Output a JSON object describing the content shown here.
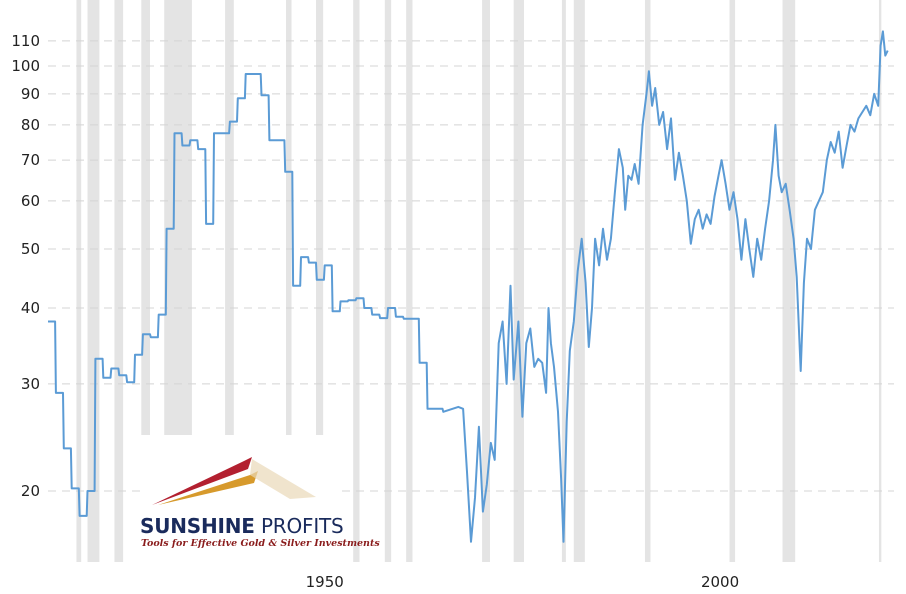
{
  "chart_data": {
    "type": "line",
    "title": "",
    "xlabel": "",
    "ylabel": "",
    "x_ticks": [
      1950,
      2000
    ],
    "y_ticks": [
      20,
      30,
      40,
      50,
      60,
      70,
      80,
      90,
      100,
      110
    ],
    "xlim": [
      1915,
      2022
    ],
    "ylim": [
      16.5,
      114
    ],
    "y_scale": "log",
    "grid": "horizontal dashed",
    "series_color": "#5b9bd5",
    "recession_color": "#e4e4e4",
    "recessions": [
      [
        1918.6,
        1919.2
      ],
      [
        1920.0,
        1921.5
      ],
      [
        1923.4,
        1924.5
      ],
      [
        1926.8,
        1927.9
      ],
      [
        1929.7,
        1933.2
      ],
      [
        1937.4,
        1938.5
      ],
      [
        1945.1,
        1945.8
      ],
      [
        1948.9,
        1949.8
      ],
      [
        1953.6,
        1954.4
      ],
      [
        1957.6,
        1958.4
      ],
      [
        1960.3,
        1961.1
      ],
      [
        1969.9,
        1970.9
      ],
      [
        1973.9,
        1975.2
      ],
      [
        1980.0,
        1980.5
      ],
      [
        1981.5,
        1982.9
      ],
      [
        1990.5,
        1991.2
      ],
      [
        2001.2,
        2001.9
      ],
      [
        2007.9,
        2009.5
      ],
      [
        2020.1,
        2020.4
      ]
    ],
    "series": [
      {
        "values": [
          [
            1915.0,
            38
          ],
          [
            1915.9,
            38
          ],
          [
            1916.0,
            29
          ],
          [
            1916.9,
            29
          ],
          [
            1917.0,
            23.5
          ],
          [
            1917.9,
            23.5
          ],
          [
            1918.0,
            20.2
          ],
          [
            1918.9,
            20.2
          ],
          [
            1919.0,
            18.2
          ],
          [
            1919.9,
            18.2
          ],
          [
            1920.0,
            20
          ],
          [
            1920.9,
            20
          ],
          [
            1921.0,
            33
          ],
          [
            1921.9,
            33
          ],
          [
            1922.0,
            30.7
          ],
          [
            1922.9,
            30.7
          ],
          [
            1923.0,
            31.8
          ],
          [
            1923.9,
            31.8
          ],
          [
            1924.0,
            31
          ],
          [
            1924.9,
            31
          ],
          [
            1925.0,
            30.2
          ],
          [
            1925.9,
            30.2
          ],
          [
            1926.0,
            33.5
          ],
          [
            1926.9,
            33.5
          ],
          [
            1927.0,
            36.2
          ],
          [
            1927.9,
            36.2
          ],
          [
            1928.0,
            35.8
          ],
          [
            1928.9,
            35.8
          ],
          [
            1929.0,
            39
          ],
          [
            1929.9,
            39
          ],
          [
            1930.0,
            54
          ],
          [
            1930.9,
            54
          ],
          [
            1931.0,
            77.5
          ],
          [
            1931.9,
            77.5
          ],
          [
            1932.0,
            74
          ],
          [
            1932.9,
            74
          ],
          [
            1933.0,
            75.5
          ],
          [
            1933.9,
            75.5
          ],
          [
            1934.0,
            73
          ],
          [
            1934.9,
            73
          ],
          [
            1935.0,
            55
          ],
          [
            1935.9,
            55
          ],
          [
            1936.0,
            77.5
          ],
          [
            1937.9,
            77.5
          ],
          [
            1938.0,
            81
          ],
          [
            1938.9,
            81
          ],
          [
            1939.0,
            88.5
          ],
          [
            1939.9,
            88.5
          ],
          [
            1940.0,
            97
          ],
          [
            1941.9,
            97
          ],
          [
            1942.0,
            89.5
          ],
          [
            1942.9,
            89.5
          ],
          [
            1943.0,
            75.5
          ],
          [
            1944.9,
            75.5
          ],
          [
            1945.0,
            67
          ],
          [
            1945.9,
            67
          ],
          [
            1946.0,
            43.5
          ],
          [
            1946.9,
            43.5
          ],
          [
            1947.0,
            48.5
          ],
          [
            1947.9,
            48.5
          ],
          [
            1948.0,
            47.5
          ],
          [
            1948.9,
            47.5
          ],
          [
            1949.0,
            44.5
          ],
          [
            1949.9,
            44.5
          ],
          [
            1950.0,
            47
          ],
          [
            1950.9,
            47
          ],
          [
            1951.0,
            39.5
          ],
          [
            1951.9,
            39.5
          ],
          [
            1952.0,
            41
          ],
          [
            1952.9,
            41
          ],
          [
            1953.0,
            41.2
          ],
          [
            1953.9,
            41.2
          ],
          [
            1954.0,
            41.5
          ],
          [
            1954.9,
            41.5
          ],
          [
            1955.0,
            40
          ],
          [
            1955.9,
            40
          ],
          [
            1956.0,
            39
          ],
          [
            1956.9,
            39
          ],
          [
            1957.0,
            38.5
          ],
          [
            1957.9,
            38.5
          ],
          [
            1958.0,
            40
          ],
          [
            1958.9,
            40
          ],
          [
            1959.0,
            38.7
          ],
          [
            1959.9,
            38.7
          ],
          [
            1960.0,
            38.4
          ],
          [
            1961.9,
            38.4
          ],
          [
            1962.0,
            32.5
          ],
          [
            1962.9,
            32.5
          ],
          [
            1963.0,
            27.3
          ],
          [
            1964.9,
            27.3
          ],
          [
            1965.0,
            27.0
          ],
          [
            1966.9,
            27.5
          ],
          [
            1967.5,
            27.3
          ],
          [
            1968.0,
            21.5
          ],
          [
            1968.5,
            16.5
          ],
          [
            1969.0,
            19.5
          ],
          [
            1969.5,
            25.5
          ],
          [
            1970.0,
            18.5
          ],
          [
            1970.5,
            20.5
          ],
          [
            1971.0,
            24
          ],
          [
            1971.5,
            22.5
          ],
          [
            1972.0,
            35
          ],
          [
            1972.5,
            38
          ],
          [
            1973.0,
            30
          ],
          [
            1973.5,
            43.5
          ],
          [
            1973.9,
            30.5
          ],
          [
            1974.5,
            38
          ],
          [
            1975.0,
            26.5
          ],
          [
            1975.5,
            35
          ],
          [
            1976.0,
            37
          ],
          [
            1976.5,
            32
          ],
          [
            1977.0,
            33
          ],
          [
            1977.5,
            32.5
          ],
          [
            1978.0,
            29
          ],
          [
            1978.3,
            40
          ],
          [
            1978.6,
            35
          ],
          [
            1979.0,
            32
          ],
          [
            1979.5,
            27
          ],
          [
            1979.9,
            21
          ],
          [
            1980.2,
            16.5
          ],
          [
            1980.6,
            26
          ],
          [
            1981.0,
            34
          ],
          [
            1981.5,
            38
          ],
          [
            1982.0,
            46
          ],
          [
            1982.5,
            52
          ],
          [
            1983.0,
            44
          ],
          [
            1983.4,
            34.5
          ],
          [
            1983.8,
            40
          ],
          [
            1984.2,
            52
          ],
          [
            1984.7,
            47
          ],
          [
            1985.2,
            54
          ],
          [
            1985.7,
            48
          ],
          [
            1986.2,
            52
          ],
          [
            1986.7,
            62
          ],
          [
            1987.2,
            73
          ],
          [
            1987.7,
            68
          ],
          [
            1988.0,
            58
          ],
          [
            1988.4,
            66
          ],
          [
            1988.8,
            65
          ],
          [
            1989.2,
            69
          ],
          [
            1989.7,
            64
          ],
          [
            1990.2,
            80
          ],
          [
            1990.7,
            90
          ],
          [
            1991.0,
            98
          ],
          [
            1991.4,
            86
          ],
          [
            1991.8,
            92
          ],
          [
            1992.3,
            80
          ],
          [
            1992.8,
            84
          ],
          [
            1993.3,
            73
          ],
          [
            1993.8,
            82
          ],
          [
            1994.3,
            65
          ],
          [
            1994.8,
            72
          ],
          [
            1995.3,
            66
          ],
          [
            1995.8,
            60
          ],
          [
            1996.3,
            51
          ],
          [
            1996.8,
            56
          ],
          [
            1997.3,
            58
          ],
          [
            1997.8,
            54
          ],
          [
            1998.3,
            57
          ],
          [
            1998.8,
            55
          ],
          [
            1999.3,
            61
          ],
          [
            1999.8,
            66
          ],
          [
            2000.2,
            70
          ],
          [
            2000.7,
            64
          ],
          [
            2001.2,
            58
          ],
          [
            2001.7,
            62
          ],
          [
            2002.2,
            56
          ],
          [
            2002.7,
            48
          ],
          [
            2003.2,
            56
          ],
          [
            2003.7,
            50
          ],
          [
            2004.2,
            45
          ],
          [
            2004.7,
            52
          ],
          [
            2005.2,
            48
          ],
          [
            2005.7,
            54
          ],
          [
            2006.2,
            60
          ],
          [
            2006.7,
            70
          ],
          [
            2007.0,
            80
          ],
          [
            2007.4,
            66
          ],
          [
            2007.8,
            62
          ],
          [
            2008.3,
            64
          ],
          [
            2008.8,
            58
          ],
          [
            2009.3,
            52
          ],
          [
            2009.7,
            45
          ],
          [
            2010.2,
            31.5
          ],
          [
            2010.6,
            44
          ],
          [
            2011.0,
            52
          ],
          [
            2011.5,
            50
          ],
          [
            2012.0,
            58
          ],
          [
            2012.5,
            60
          ],
          [
            2013.0,
            62
          ],
          [
            2013.5,
            70
          ],
          [
            2014.0,
            75
          ],
          [
            2014.5,
            72
          ],
          [
            2015.0,
            78
          ],
          [
            2015.5,
            68
          ],
          [
            2016.0,
            74
          ],
          [
            2016.5,
            80
          ],
          [
            2017.0,
            78
          ],
          [
            2017.5,
            82
          ],
          [
            2018.0,
            84
          ],
          [
            2018.5,
            86
          ],
          [
            2019.0,
            83
          ],
          [
            2019.5,
            90
          ],
          [
            2020.0,
            86
          ],
          [
            2020.3,
            108
          ],
          [
            2020.6,
            114
          ],
          [
            2020.9,
            104
          ],
          [
            2021.2,
            106
          ]
        ]
      }
    ]
  },
  "watermark": {
    "name_bold": "SUNSHINE",
    "name_thin": " PROFITS",
    "tagline": "Tools for Effective Gold & Silver Investments"
  }
}
